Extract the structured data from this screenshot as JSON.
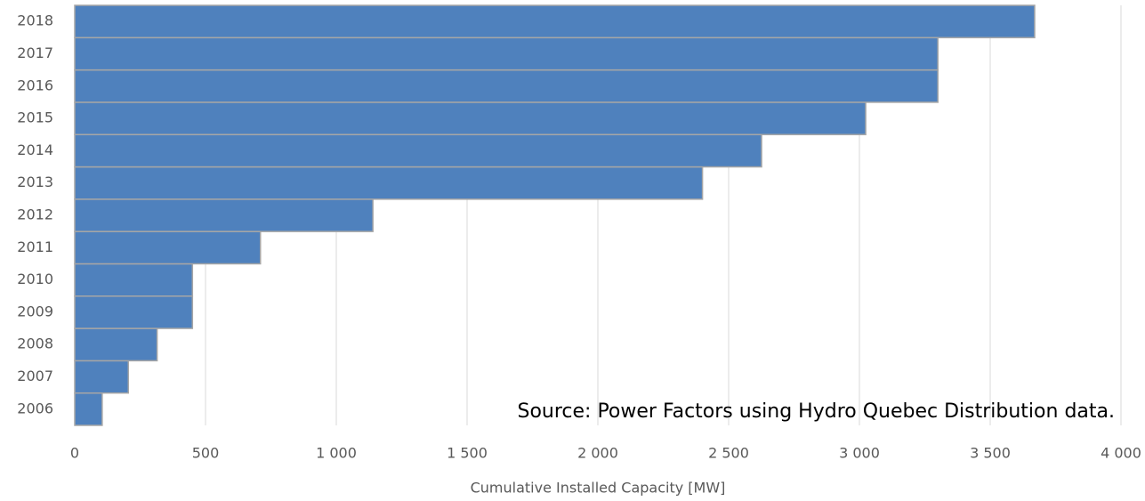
{
  "chart_data": {
    "type": "barh",
    "categories": [
      "2006",
      "2007",
      "2008",
      "2009",
      "2010",
      "2011",
      "2012",
      "2013",
      "2014",
      "2015",
      "2016",
      "2017",
      "2018"
    ],
    "values": [
      105,
      205,
      315,
      450,
      450,
      710,
      1140,
      2400,
      2626,
      3024,
      3300,
      3300,
      3670
    ],
    "color": "#4f81bd",
    "xlabel": "Cumulative Installed Capacity [MW]",
    "annotation": "Source: Power Factors using Hydro Quebec Distribution data.",
    "xlim": [
      0,
      4000
    ],
    "xticks": [
      0,
      500,
      {
        "value": 1000,
        "label": "1 000"
      },
      {
        "value": 1500,
        "label": "1 500"
      },
      {
        "value": 2000,
        "label": "2 000"
      },
      {
        "value": 2500,
        "label": "2 500"
      },
      {
        "value": 3000,
        "label": "3 000"
      },
      {
        "value": 3500,
        "label": "3 500"
      },
      {
        "value": 4000,
        "label": "4 000"
      }
    ],
    "grid": true
  }
}
